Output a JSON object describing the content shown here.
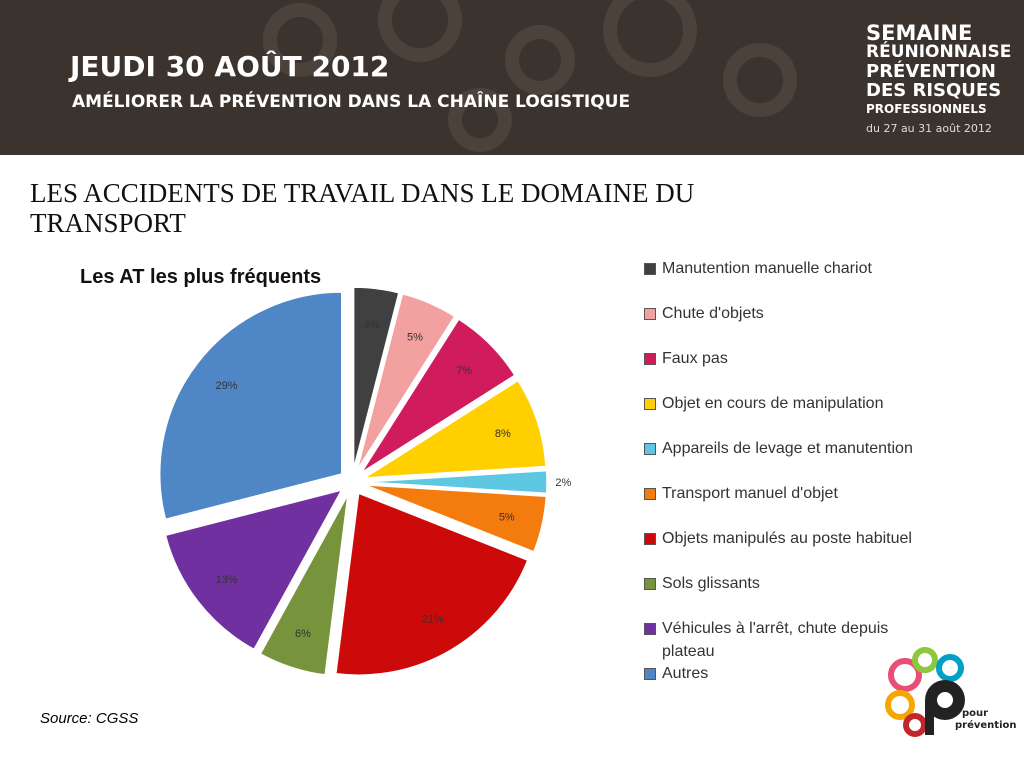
{
  "header": {
    "date": "JEUDI 30 AOÛT 2012",
    "subtitle": "AMÉLIORER LA PRÉVENTION DANS LA CHAÎNE LOGISTIQUE",
    "event": [
      "SEMAINE",
      "RÉUNIONNAISE",
      "PRÉVENTION",
      "DES RISQUES",
      "PROFESSIONNELS"
    ],
    "event_dates": "du 27 au 31 août 2012"
  },
  "slide_title": "LES ACCIDENTS DE TRAVAIL DANS LE DOMAINE DU TRANSPORT",
  "source": "Source: CGSS",
  "logo": [
    "pour",
    "prévention"
  ],
  "chart_data": {
    "type": "pie",
    "title": "Les AT les plus fréquents",
    "categories": [
      "Manutention manuelle chariot",
      "Chute d'objets",
      "Faux pas",
      "Objet en cours de manipulation",
      "Appareils de levage et manutention",
      "Transport manuel d'objet",
      "Objets manipulés au poste habituel",
      "Sols glissants",
      "Véhicules à l'arrêt, chute depuis plateau",
      "Autres"
    ],
    "values": [
      4,
      5,
      7,
      8,
      2,
      5,
      21,
      6,
      13,
      29
    ],
    "value_labels": [
      "4%",
      "5%",
      "7%",
      "8%",
      "2%",
      "5%",
      "21%",
      "6%",
      "13%",
      "29%"
    ],
    "colors": [
      "#404040",
      "#f2a0a0",
      "#d01c5c",
      "#ffcf00",
      "#5ec8e2",
      "#f47b0e",
      "#cc0a0a",
      "#77933c",
      "#7030a0",
      "#4f86c6"
    ]
  }
}
